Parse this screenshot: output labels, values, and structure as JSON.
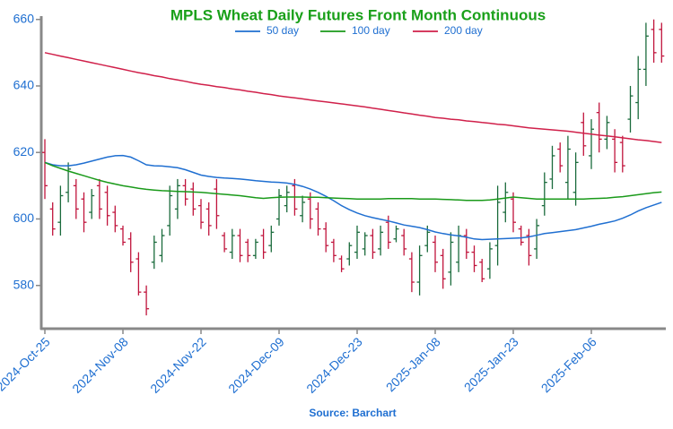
{
  "chart_data": {
    "type": "ohlc",
    "title": "MPLS Wheat Daily Futures Front Month Continuous",
    "source": "Source: Barchart",
    "legend": "top",
    "up_color": "#1a6b3c",
    "down_color": "#c0143c",
    "ylim": [
      567,
      661
    ],
    "yticks": [
      580,
      600,
      620,
      640,
      660
    ],
    "categories": [
      "2024-Oct-25",
      null,
      null,
      null,
      null,
      null,
      null,
      null,
      null,
      null,
      "2024-Nov-08",
      null,
      null,
      null,
      null,
      null,
      null,
      null,
      null,
      null,
      "2024-Nov-22",
      null,
      null,
      null,
      null,
      null,
      null,
      null,
      null,
      null,
      "2024-Dec-09",
      null,
      null,
      null,
      null,
      null,
      null,
      null,
      null,
      null,
      "2024-Dec-23",
      null,
      null,
      null,
      null,
      null,
      null,
      null,
      null,
      null,
      "2025-Jan-08",
      null,
      null,
      null,
      null,
      null,
      null,
      null,
      null,
      null,
      "2025-Jan-23",
      null,
      null,
      null,
      null,
      null,
      null,
      null,
      null,
      null,
      "2025-Feb-06",
      null,
      null,
      null,
      null,
      null,
      null,
      null,
      null,
      null
    ],
    "open": [
      620,
      603,
      599,
      608,
      610,
      606,
      602,
      610,
      608,
      602,
      597,
      594,
      588,
      578,
      587,
      589,
      598,
      603,
      610,
      609,
      604,
      603,
      609,
      595,
      590,
      595,
      593,
      589,
      595,
      592,
      600,
      604,
      610,
      601,
      606,
      603,
      597,
      593,
      588,
      588,
      590,
      591,
      595,
      591,
      599,
      594,
      595,
      588,
      581,
      592,
      593,
      589,
      584,
      587,
      595,
      590,
      587,
      585,
      592,
      602,
      606,
      597,
      595,
      591,
      604,
      612,
      621,
      611,
      608,
      629,
      619,
      632,
      624,
      624,
      623,
      630,
      635,
      645,
      657,
      657
    ],
    "high": [
      624,
      605,
      610,
      617,
      612,
      608,
      609,
      612,
      610,
      604,
      598,
      596,
      590,
      580,
      595,
      597,
      610,
      612,
      612,
      611,
      606,
      605,
      612,
      596,
      597,
      597,
      594,
      594,
      597,
      598,
      609,
      610,
      612,
      607,
      608,
      605,
      599,
      594,
      589,
      593,
      598,
      596,
      597,
      598,
      601,
      598,
      597,
      590,
      592,
      598,
      595,
      591,
      596,
      598,
      597,
      592,
      588,
      593,
      610,
      611,
      608,
      598,
      597,
      600,
      614,
      622,
      623,
      625,
      620,
      632,
      630,
      635,
      631,
      627,
      625,
      640,
      649,
      659,
      660,
      659
    ],
    "low": [
      606,
      595,
      595,
      605,
      600,
      596,
      600,
      600,
      598,
      596,
      592,
      584,
      577,
      571,
      585,
      587,
      595,
      600,
      604,
      601,
      597,
      595,
      597,
      590,
      588,
      587,
      587,
      588,
      588,
      590,
      598,
      602,
      601,
      599,
      597,
      595,
      590,
      587,
      584,
      586,
      588,
      589,
      588,
      589,
      591,
      593,
      589,
      578,
      577,
      590,
      584,
      579,
      580,
      584,
      588,
      584,
      581,
      582,
      586,
      599,
      596,
      592,
      586,
      588,
      601,
      609,
      614,
      606,
      604,
      619,
      615,
      620,
      621,
      614,
      614,
      626,
      630,
      640,
      647,
      647
    ],
    "close": [
      610,
      597,
      607,
      615,
      603,
      599,
      607,
      603,
      601,
      598,
      593,
      587,
      578,
      573,
      593,
      595,
      607,
      610,
      606,
      603,
      599,
      598,
      601,
      591,
      595,
      589,
      589,
      593,
      590,
      596,
      607,
      608,
      603,
      605,
      600,
      597,
      592,
      589,
      585,
      592,
      596,
      595,
      590,
      596,
      593,
      597,
      591,
      581,
      589,
      596,
      587,
      582,
      593,
      595,
      590,
      586,
      582,
      591,
      605,
      608,
      599,
      593,
      589,
      598,
      611,
      619,
      616,
      621,
      617,
      622,
      627,
      624,
      629,
      617,
      616,
      637,
      645,
      655,
      650,
      649
    ],
    "series": [
      {
        "name": "50 day",
        "color": "#1f6fd1",
        "values": [
          617,
          616.3,
          616,
          616,
          616.3,
          616.8,
          617.4,
          618,
          618.6,
          619,
          619.1,
          618.6,
          617.5,
          616.3,
          616,
          615.9,
          615.7,
          615.4,
          614.8,
          614,
          613.2,
          612.8,
          612.5,
          612.3,
          612.2,
          612,
          611.8,
          611.5,
          611.3,
          611.1,
          611,
          610.8,
          610.4,
          609.8,
          609,
          608,
          606.8,
          605.5,
          604,
          602.8,
          601.8,
          601,
          600.4,
          599.9,
          599.4,
          598.8,
          598.2,
          597.8,
          597.4,
          596.8,
          596.1,
          595.6,
          595.2,
          594.9,
          594.5,
          594,
          593.8,
          593.9,
          594,
          594.1,
          594.2,
          594.3,
          594.6,
          595.1,
          595.6,
          595.9,
          596.2,
          596.5,
          596.8,
          597.3,
          597.8,
          598.4,
          598.9,
          599.4,
          600.2,
          601.2,
          602.4,
          603.4,
          604.2,
          605
        ]
      },
      {
        "name": "100 day",
        "color": "#1a9a1a",
        "values": [
          617,
          616,
          615.2,
          614.4,
          613.7,
          613,
          612.3,
          611.6,
          611,
          610.5,
          610,
          609.6,
          609.2,
          608.9,
          608.7,
          608.5,
          608.4,
          608.3,
          608.2,
          608.1,
          608,
          607.8,
          607.6,
          607.4,
          607.2,
          607,
          606.7,
          606.4,
          606.2,
          606.4,
          606.5,
          606.6,
          606.6,
          606.6,
          606.5,
          606.5,
          606.4,
          606.3,
          606.2,
          606.1,
          606,
          606,
          606,
          606,
          606.1,
          606.1,
          606.1,
          606.1,
          606,
          606,
          606,
          605.9,
          605.8,
          605.7,
          605.6,
          605.6,
          605.6,
          605.7,
          606,
          606.3,
          606.6,
          606.4,
          606.2,
          606,
          606,
          606,
          606,
          606,
          606,
          606,
          606.1,
          606.2,
          606.3,
          606.5,
          606.7,
          607,
          607.3,
          607.6,
          607.9,
          608.1
        ]
      },
      {
        "name": "200 day",
        "color": "#d0204a",
        "values": [
          650,
          649.5,
          649,
          648.5,
          648,
          647.5,
          647,
          646.5,
          646,
          645.5,
          645,
          644.5,
          644,
          643.6,
          643.1,
          642.7,
          642.2,
          641.8,
          641.4,
          640.9,
          640.5,
          640.2,
          639.8,
          639.5,
          639.1,
          638.8,
          638.4,
          638.1,
          637.7,
          637.4,
          637,
          636.7,
          636.4,
          636.1,
          635.8,
          635.5,
          635.2,
          634.9,
          634.6,
          634.3,
          634,
          633.7,
          633.3,
          633,
          632.6,
          632.3,
          631.9,
          631.6,
          631.2,
          630.9,
          630.5,
          630.3,
          630,
          629.8,
          629.5,
          629.3,
          629,
          628.8,
          628.5,
          628.3,
          628,
          627.7,
          627.4,
          627.2,
          627,
          626.8,
          626.6,
          626.4,
          626.1,
          625.8,
          625.5,
          625.2,
          625,
          624.7,
          624.4,
          624.1,
          623.8,
          623.6,
          623.3,
          623
        ]
      }
    ]
  }
}
